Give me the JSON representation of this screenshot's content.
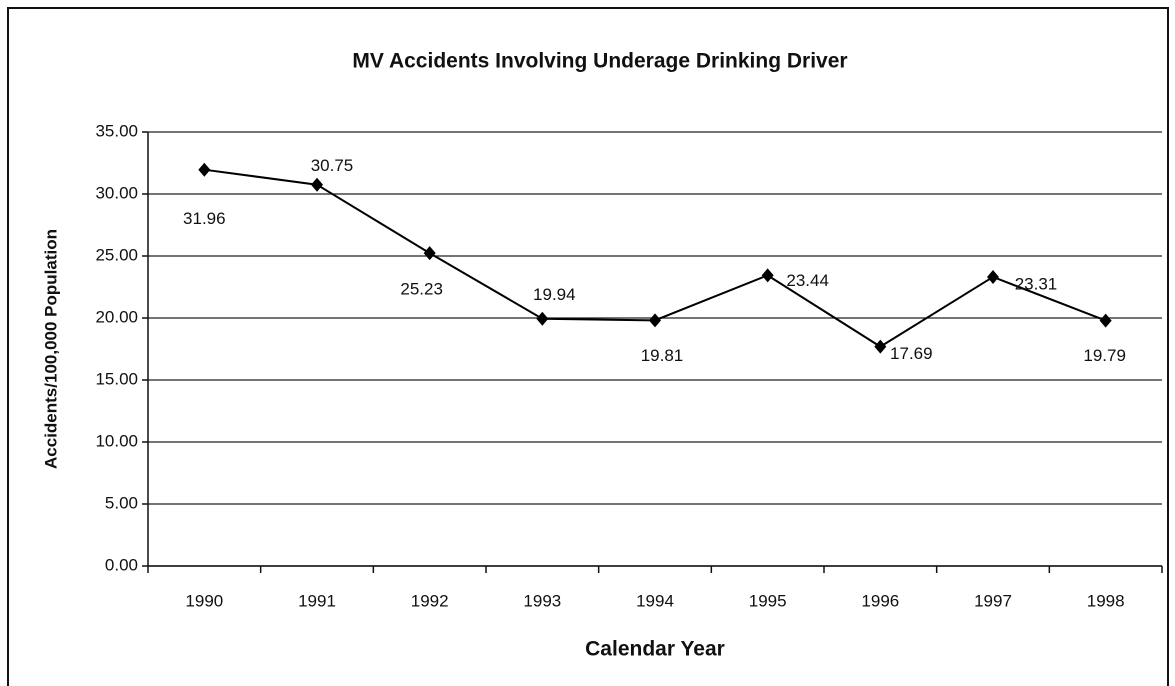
{
  "chart_data": {
    "type": "line",
    "title": "MV Accidents Involving Underage Drinking Driver",
    "x_label": "Calendar Year",
    "y_label": "Accidents/100,000 Population",
    "categories": [
      "1990",
      "1991",
      "1992",
      "1993",
      "1994",
      "1995",
      "1996",
      "1997",
      "1998"
    ],
    "values": [
      31.96,
      30.75,
      25.23,
      19.94,
      19.81,
      23.44,
      17.69,
      23.31,
      19.79
    ],
    "color": "#000000",
    "ylim": [
      0,
      35
    ],
    "yticks": [
      {
        "value": 0,
        "label": "0.00"
      },
      {
        "value": 5,
        "label": "5.00"
      },
      {
        "value": 10,
        "label": "10.00"
      },
      {
        "value": 15,
        "label": "15.00"
      },
      {
        "value": 20,
        "label": "20.00"
      },
      {
        "value": 25,
        "label": "25.00"
      },
      {
        "value": 30,
        "label": "30.00"
      },
      {
        "value": 35,
        "label": "35.00"
      }
    ],
    "grid": true
  }
}
